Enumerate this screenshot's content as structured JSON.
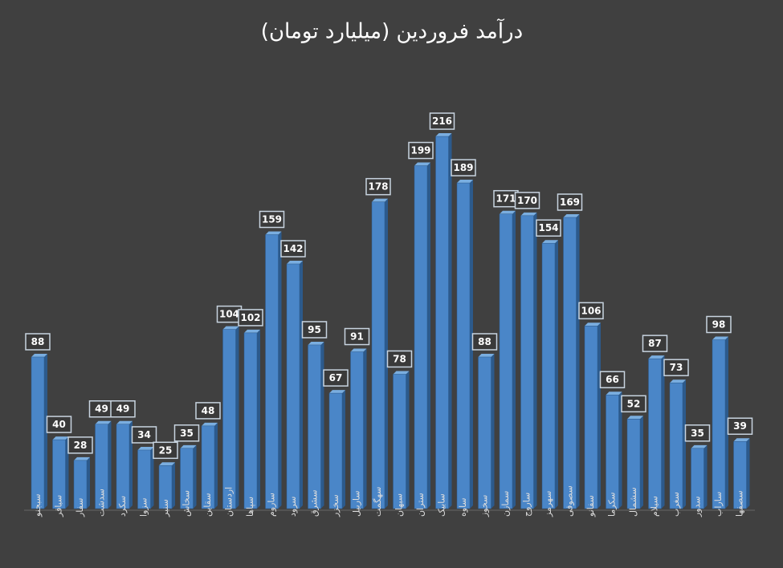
{
  "chart_data": {
    "type": "bar",
    "title": "درآمد فروردین (میلیارد تومان)",
    "categories": [
      "سبجنو",
      "سباقر",
      "سفار",
      "سدشت",
      "سکرد",
      "سزوا",
      "سنیر",
      "سخاش",
      "سقاین",
      "اردستان",
      "سپاها",
      "ساروم",
      "سرود",
      "سشرق",
      "سخزر",
      "ساربیل",
      "سهگمت",
      "سبهان",
      "ستران",
      "سابیک",
      "ساوه",
      "سخوز",
      "سمازن",
      "ساروج",
      "سهرمز",
      "سصوفی",
      "سفانو",
      "سکرما",
      "سشمال",
      "سیلام",
      "سغرب",
      "سدور",
      "ساراب",
      "سصفها"
    ],
    "values": [
      88,
      40,
      28,
      49,
      49,
      34,
      25,
      35,
      48,
      104,
      102,
      159,
      142,
      95,
      67,
      91,
      178,
      78,
      199,
      216,
      189,
      88,
      171,
      170,
      154,
      169,
      106,
      66,
      52,
      87,
      73,
      35,
      98,
      39
    ],
    "color": "#4a86c8"
  }
}
